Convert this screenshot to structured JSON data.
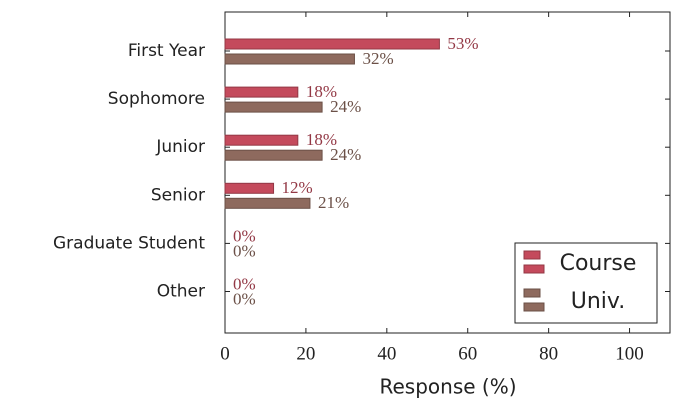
{
  "chart_data": {
    "type": "hbar",
    "categories": [
      "First Year",
      "Sophomore",
      "Junior",
      "Senior",
      "Graduate Student",
      "Other"
    ],
    "series": [
      {
        "name": "Course",
        "color": "#c44a5c",
        "values": [
          53,
          18,
          18,
          12,
          0,
          0
        ],
        "value_labels": [
          "53%",
          "18%",
          "18%",
          "12%",
          "0%",
          "0%"
        ]
      },
      {
        "name": "Univ.",
        "color": "#8e6a5e",
        "values": [
          32,
          24,
          24,
          21,
          0,
          0
        ],
        "value_labels": [
          "32%",
          "24%",
          "24%",
          "21%",
          "0%",
          "0%"
        ]
      }
    ],
    "xlabel": "Response (%)",
    "xlim": [
      0,
      110
    ],
    "xticks": [
      0,
      20,
      40,
      60,
      80,
      100
    ],
    "legend": "lower right"
  }
}
